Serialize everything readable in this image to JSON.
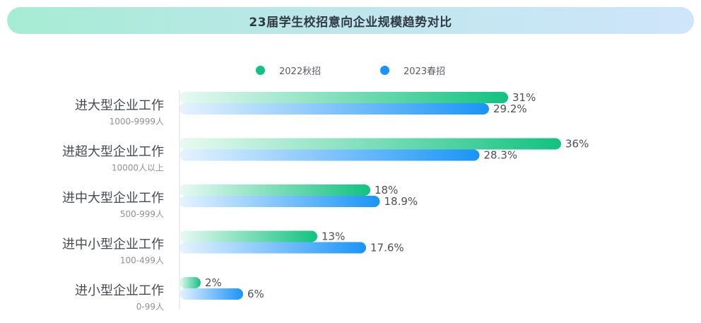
{
  "title": "23届学生校招意向企业规模趋势对比",
  "colors": {
    "series1": "#12c281",
    "series1_light": "#e8faf2",
    "series2": "#1a94f7",
    "series2_light": "#e6f3ff",
    "axis": "#d9dde2"
  },
  "chart_data": {
    "type": "bar",
    "orientation": "horizontal",
    "categories": [
      {
        "label": "进大型企业工作",
        "sub": "1000-9999人"
      },
      {
        "label": "进超大型企业工作",
        "sub": "10000人以上"
      },
      {
        "label": "进中大型企业工作",
        "sub": "500-999人"
      },
      {
        "label": "进中小型企业工作",
        "sub": "100-499人"
      },
      {
        "label": "进小型企业工作",
        "sub": "0-99人"
      }
    ],
    "series": [
      {
        "name": "2022秋招",
        "values": [
          31,
          36,
          18,
          13,
          2
        ],
        "labels": [
          "31%",
          "36%",
          "18%",
          "13%",
          "2%"
        ]
      },
      {
        "name": "2023春招",
        "values": [
          29.2,
          28.3,
          18.9,
          17.6,
          6
        ],
        "labels": [
          "29.2%",
          "28.3%",
          "18.9%",
          "17.6%",
          "6%"
        ]
      }
    ],
    "xlim": [
      0,
      40
    ],
    "legend_position": "top-center"
  }
}
